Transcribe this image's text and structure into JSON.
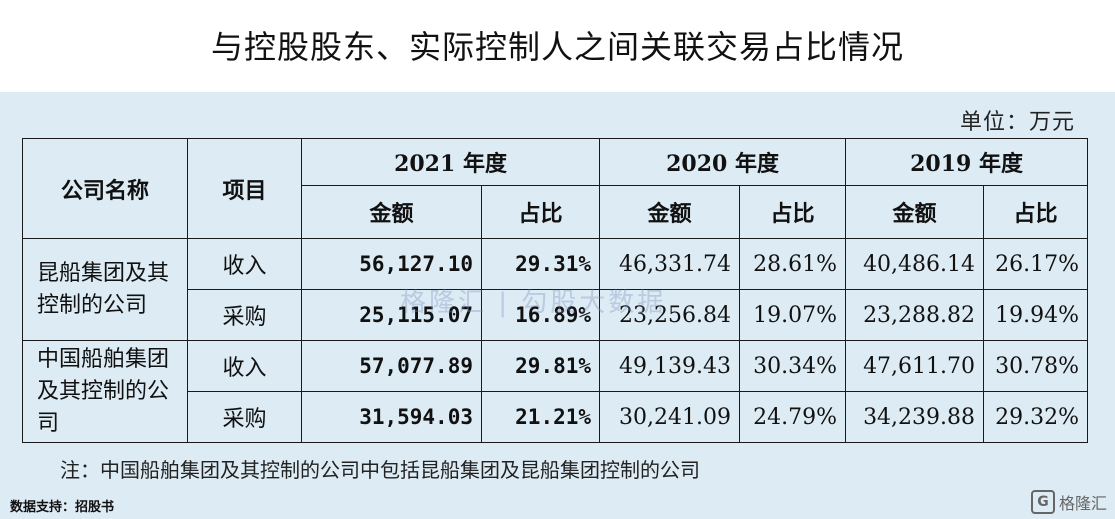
{
  "title": "与控股股东、实际控制人之间关联交易占比情况",
  "unit": "单位：万元",
  "headers": {
    "company": "公司名称",
    "item": "项目",
    "years": [
      "2021 年度",
      "2020 年度",
      "2019 年度"
    ],
    "amount": "金额",
    "ratio": "占比"
  },
  "rows": [
    {
      "company": "昆船集团及其控制的公司",
      "item": "收入",
      "y2021_amount": "56,127.10",
      "y2021_ratio": "29.31%",
      "y2020_amount": "46,331.74",
      "y2020_ratio": "28.61%",
      "y2019_amount": "40,486.14",
      "y2019_ratio": "26.17%"
    },
    {
      "item": "采购",
      "y2021_amount": "25,115.07",
      "y2021_ratio": "16.89%",
      "y2020_amount": "23,256.84",
      "y2020_ratio": "19.07%",
      "y2019_amount": "23,288.82",
      "y2019_ratio": "19.94%"
    },
    {
      "company": "中国船舶集团及其控制的公司",
      "item": "收入",
      "y2021_amount": "57,077.89",
      "y2021_ratio": "29.81%",
      "y2020_amount": "49,139.43",
      "y2020_ratio": "30.34%",
      "y2019_amount": "47,611.70",
      "y2019_ratio": "30.78%"
    },
    {
      "item": "采购",
      "y2021_amount": "31,594.03",
      "y2021_ratio": "21.21%",
      "y2020_amount": "30,241.09",
      "y2020_ratio": "24.79%",
      "y2019_amount": "34,239.88",
      "y2019_ratio": "29.32%"
    }
  ],
  "note": "注：中国船舶集团及其控制的公司中包括昆船集团及昆船集团控制的公司",
  "source": "数据支持：招股书",
  "watermark": "格隆汇 | 勾股大数据",
  "logo_text": "格隆汇"
}
